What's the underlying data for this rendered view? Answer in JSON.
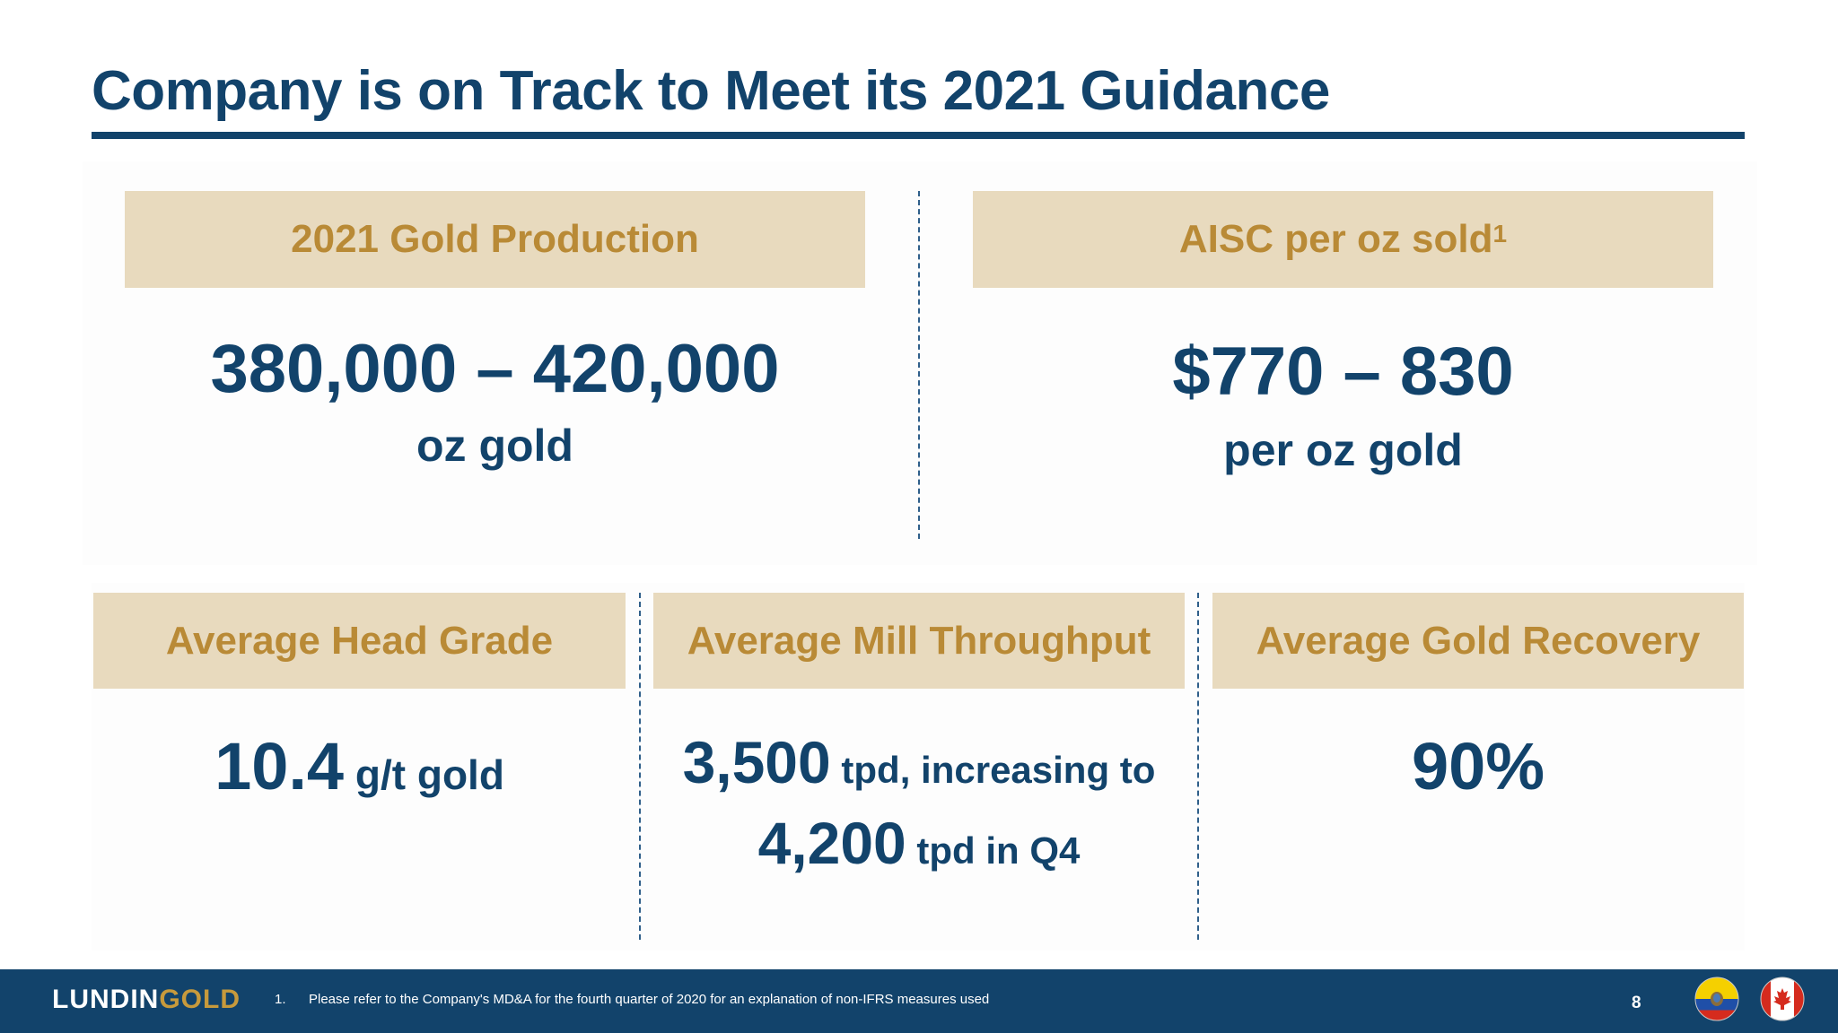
{
  "slide": {
    "title": "Company is on Track to Meet its 2021 Guidance",
    "page_number": "8"
  },
  "top": {
    "production": {
      "label": "2021 Gold Production",
      "value": "380,000 – 420,000",
      "unit": "oz gold"
    },
    "aisc": {
      "label": "AISC per oz sold",
      "label_sup": "1",
      "value": "$770 – 830",
      "unit": "per oz gold"
    }
  },
  "bottom": {
    "head_grade": {
      "label": "Average Head Grade",
      "value": "10.4",
      "unit": " g/t gold"
    },
    "mill_throughput": {
      "label": "Average Mill Throughput",
      "value1": "3,500",
      "unit1": " tpd, increasing to",
      "value2": "4,200",
      "unit2": " tpd in Q4"
    },
    "recovery": {
      "label": "Average Gold Recovery",
      "value": "90%"
    }
  },
  "footer": {
    "logo_part1": "LUNDIN",
    "logo_part2": "GOLD",
    "footnote_number": "1.",
    "footnote_text": "Please refer to the Company's MD&A for the fourth quarter of 2020 for an explanation of non-IFRS measures used",
    "flags": [
      "ecuador-flag-icon",
      "canada-flag-icon"
    ]
  },
  "colors": {
    "navy": "#12436b",
    "gold_text": "#b98a36",
    "box_fill": "#e8dabe",
    "footer": "#12436b"
  }
}
